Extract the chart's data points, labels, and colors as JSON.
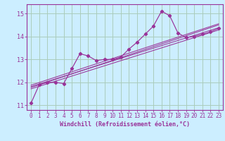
{
  "title": "",
  "xlabel": "Windchill (Refroidissement éolien,°C)",
  "ylabel": "",
  "bg_color": "#cceeff",
  "line_color": "#993399",
  "grid_color": "#aaccbb",
  "xlim": [
    -0.5,
    23.5
  ],
  "ylim": [
    10.8,
    15.4
  ],
  "yticks": [
    11,
    12,
    13,
    14,
    15
  ],
  "xticks": [
    0,
    1,
    2,
    3,
    4,
    5,
    6,
    7,
    8,
    9,
    10,
    11,
    12,
    13,
    14,
    15,
    16,
    17,
    18,
    19,
    20,
    21,
    22,
    23
  ],
  "data_x": [
    0,
    1,
    2,
    3,
    4,
    5,
    6,
    7,
    8,
    9,
    10,
    11,
    12,
    13,
    14,
    15,
    16,
    17,
    18,
    19,
    20,
    21,
    22,
    23
  ],
  "data_y": [
    11.1,
    11.9,
    12.0,
    12.0,
    11.95,
    12.6,
    13.25,
    13.15,
    12.95,
    13.0,
    13.0,
    13.1,
    13.45,
    13.75,
    14.1,
    14.45,
    15.1,
    14.9,
    14.15,
    13.95,
    14.0,
    14.1,
    14.2,
    14.35
  ],
  "reg_lines": [
    {
      "start_x": 0,
      "start_y": 11.82,
      "end_x": 23,
      "end_y": 14.38
    },
    {
      "start_x": 0,
      "start_y": 11.72,
      "end_x": 23,
      "end_y": 14.28
    },
    {
      "start_x": 0,
      "start_y": 11.78,
      "end_x": 23,
      "end_y": 14.5
    },
    {
      "start_x": 0,
      "start_y": 11.88,
      "end_x": 23,
      "end_y": 14.55
    }
  ],
  "tick_fontsize": 5.5,
  "xlabel_fontsize": 6.0
}
